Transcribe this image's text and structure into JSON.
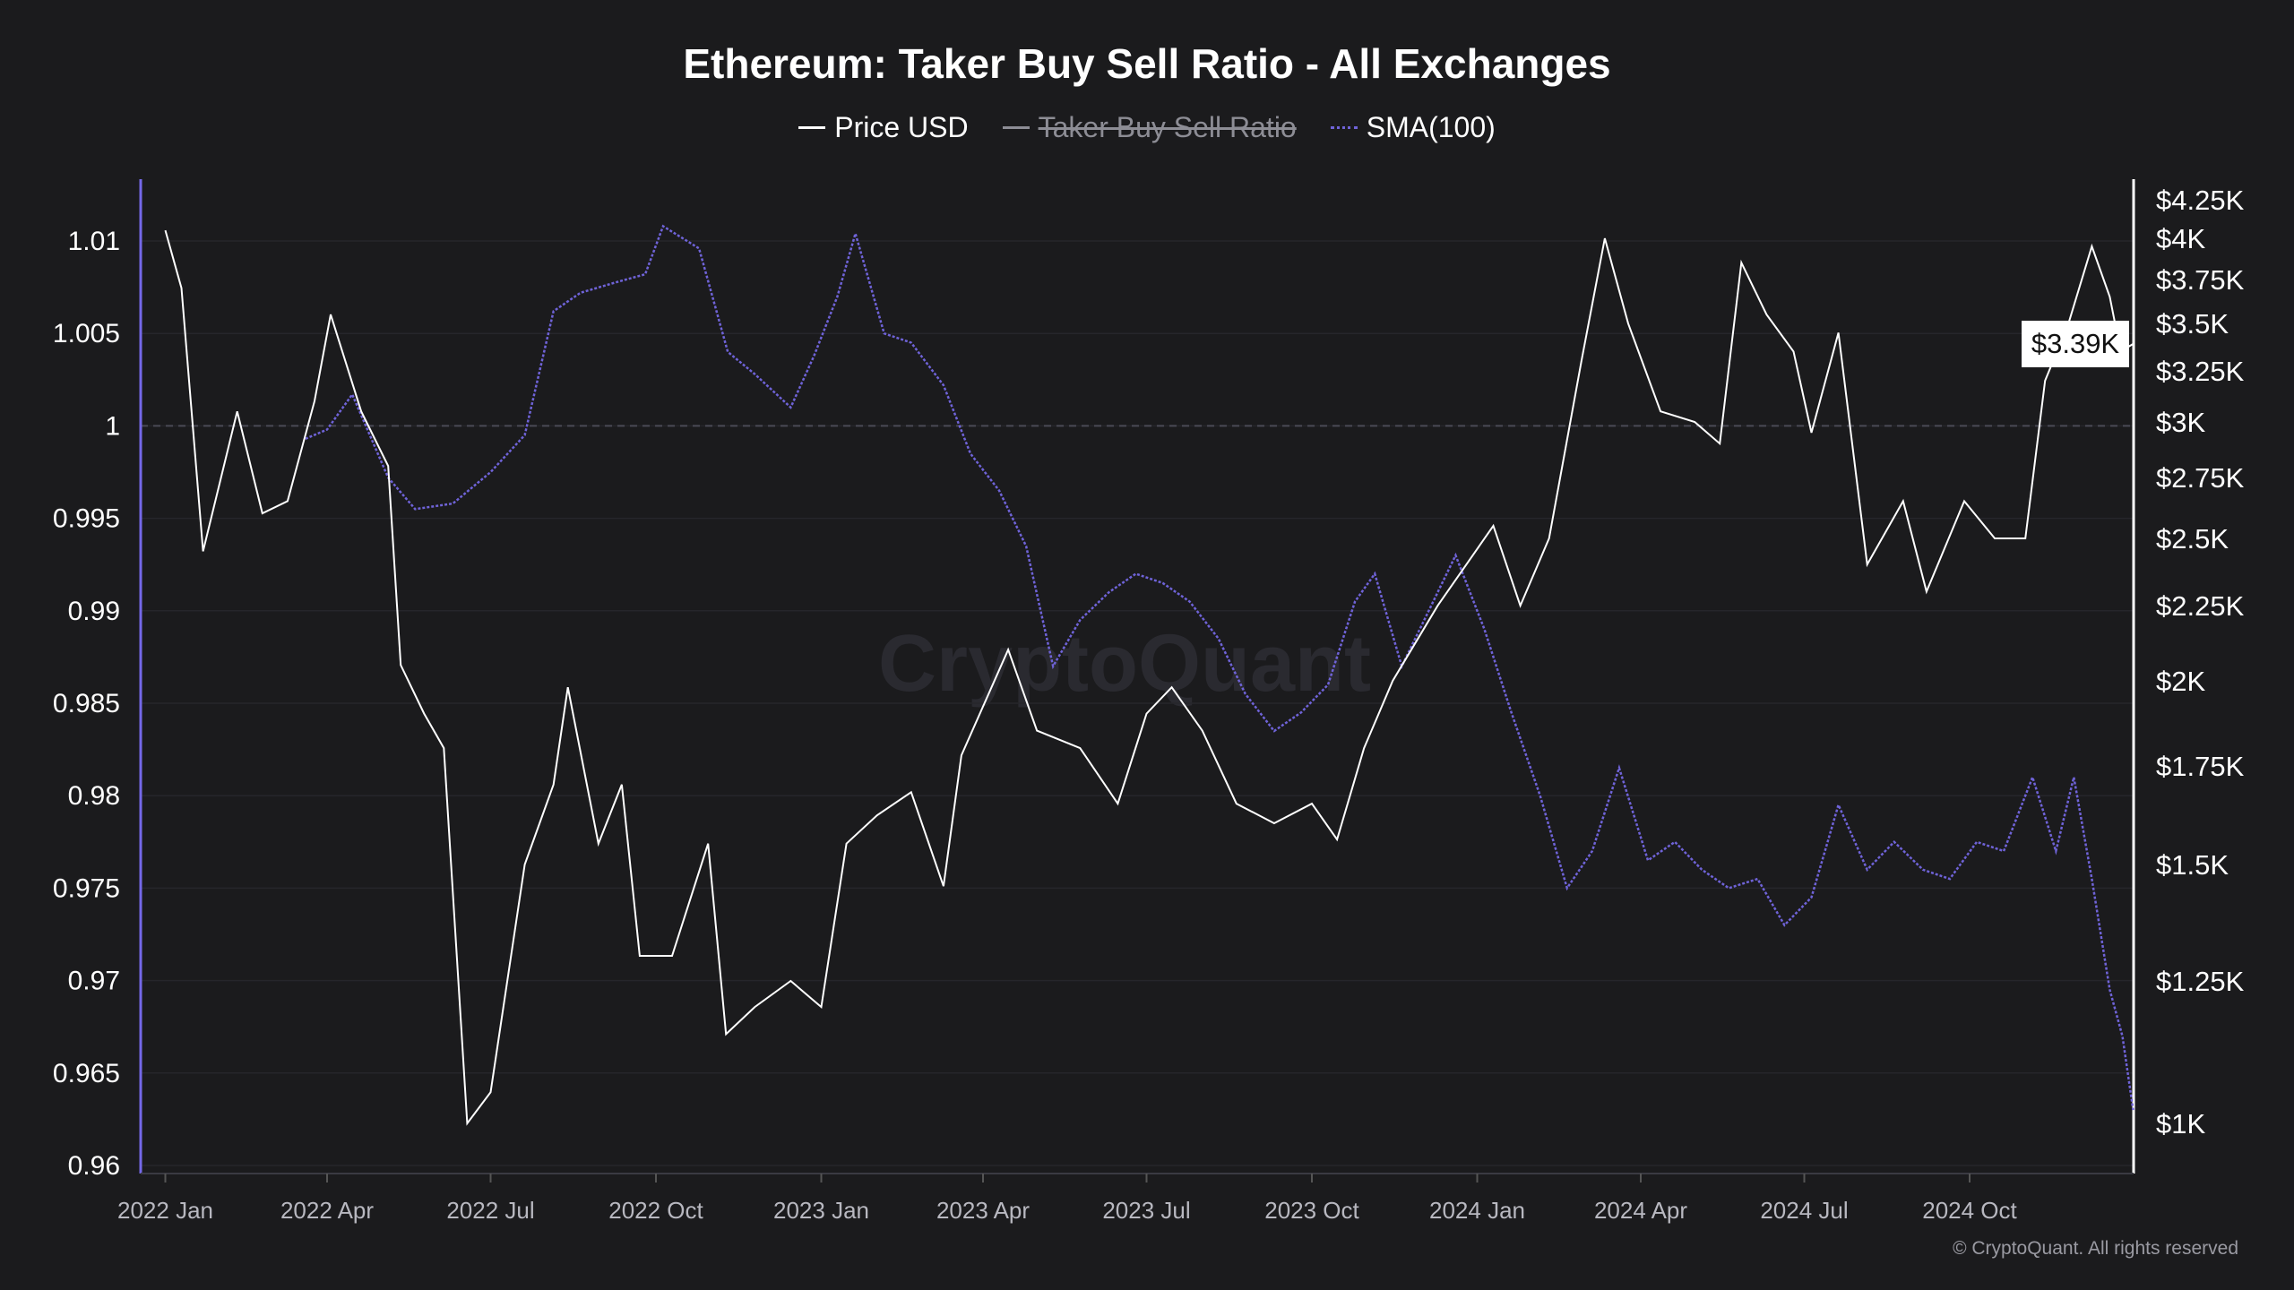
{
  "chart_data": {
    "type": "line",
    "title": "Ethereum: Taker Buy Sell Ratio - All Exchanges",
    "legend": [
      {
        "name": "Price USD",
        "color": "#ffffff",
        "visible": true
      },
      {
        "name": "Taker Buy Sell Ratio",
        "color": "#8d8d95",
        "visible": false
      },
      {
        "name": "SMA(100)",
        "color": "#6f63d8",
        "visible": true,
        "style": "dotted"
      }
    ],
    "legend_placement": "top-center",
    "x_ticks": [
      "2022 Jan",
      "2022 Apr",
      "2022 Jul",
      "2022 Oct",
      "2023 Jan",
      "2023 Apr",
      "2023 Jul",
      "2023 Oct",
      "2024 Jan",
      "2024 Apr",
      "2024 Jul",
      "2024 Oct"
    ],
    "y_left": {
      "ticks": [
        "1.01",
        "1.005",
        "1",
        "0.995",
        "0.99",
        "0.985",
        "0.98",
        "0.975",
        "0.97",
        "0.965",
        "0.96"
      ],
      "range": [
        0.96,
        1.01
      ],
      "reference_line": 1
    },
    "y_right": {
      "scale": "log",
      "ticks": [
        "$4.25K",
        "$4K",
        "$3.75K",
        "$3.5K",
        "$3.25K",
        "$3K",
        "$2.75K",
        "$2.5K",
        "$2.25K",
        "$2K",
        "$1.75K",
        "$1.5K",
        "$1.25K",
        "$1K"
      ],
      "tick_values": [
        4250,
        4000,
        3750,
        3500,
        3250,
        3000,
        2750,
        2500,
        2250,
        2000,
        1750,
        1500,
        1250,
        1000
      ]
    },
    "current_price_label": "$3.39K",
    "series": [
      {
        "name": "Price USD",
        "axis": "right",
        "points": [
          [
            "2022-01-01",
            4050
          ],
          [
            "2022-01-10",
            3700
          ],
          [
            "2022-01-22",
            2450
          ],
          [
            "2022-02-10",
            3050
          ],
          [
            "2022-02-24",
            2600
          ],
          [
            "2022-03-10",
            2650
          ],
          [
            "2022-03-25",
            3100
          ],
          [
            "2022-04-03",
            3550
          ],
          [
            "2022-04-20",
            3050
          ],
          [
            "2022-05-05",
            2800
          ],
          [
            "2022-05-12",
            2050
          ],
          [
            "2022-05-25",
            1900
          ],
          [
            "2022-06-05",
            1800
          ],
          [
            "2022-06-18",
            1000
          ],
          [
            "2022-07-01",
            1050
          ],
          [
            "2022-07-20",
            1500
          ],
          [
            "2022-08-05",
            1700
          ],
          [
            "2022-08-13",
            1980
          ],
          [
            "2022-08-30",
            1550
          ],
          [
            "2022-09-12",
            1700
          ],
          [
            "2022-09-22",
            1300
          ],
          [
            "2022-10-10",
            1300
          ],
          [
            "2022-10-30",
            1550
          ],
          [
            "2022-11-09",
            1150
          ],
          [
            "2022-11-25",
            1200
          ],
          [
            "2022-12-15",
            1250
          ],
          [
            "2023-01-01",
            1200
          ],
          [
            "2023-01-15",
            1550
          ],
          [
            "2023-02-01",
            1620
          ],
          [
            "2023-02-20",
            1680
          ],
          [
            "2023-03-10",
            1450
          ],
          [
            "2023-03-20",
            1780
          ],
          [
            "2023-04-15",
            2100
          ],
          [
            "2023-05-01",
            1850
          ],
          [
            "2023-05-25",
            1800
          ],
          [
            "2023-06-15",
            1650
          ],
          [
            "2023-07-01",
            1900
          ],
          [
            "2023-07-15",
            1980
          ],
          [
            "2023-08-01",
            1850
          ],
          [
            "2023-08-20",
            1650
          ],
          [
            "2023-09-10",
            1600
          ],
          [
            "2023-10-01",
            1650
          ],
          [
            "2023-10-15",
            1560
          ],
          [
            "2023-10-30",
            1800
          ],
          [
            "2023-11-15",
            2000
          ],
          [
            "2023-12-10",
            2250
          ],
          [
            "2024-01-10",
            2550
          ],
          [
            "2024-01-25",
            2250
          ],
          [
            "2024-02-10",
            2500
          ],
          [
            "2024-02-28",
            3300
          ],
          [
            "2024-03-12",
            4000
          ],
          [
            "2024-03-25",
            3500
          ],
          [
            "2024-04-12",
            3050
          ],
          [
            "2024-05-01",
            3000
          ],
          [
            "2024-05-15",
            2900
          ],
          [
            "2024-05-27",
            3850
          ],
          [
            "2024-06-10",
            3550
          ],
          [
            "2024-06-25",
            3350
          ],
          [
            "2024-07-05",
            2950
          ],
          [
            "2024-07-20",
            3450
          ],
          [
            "2024-08-05",
            2400
          ],
          [
            "2024-08-25",
            2650
          ],
          [
            "2024-09-07",
            2300
          ],
          [
            "2024-09-28",
            2650
          ],
          [
            "2024-10-15",
            2500
          ],
          [
            "2024-11-01",
            2500
          ],
          [
            "2024-11-12",
            3200
          ],
          [
            "2024-11-25",
            3500
          ],
          [
            "2024-12-08",
            3950
          ],
          [
            "2024-12-18",
            3650
          ],
          [
            "2024-12-24",
            3350
          ],
          [
            "2024-12-31",
            3390
          ]
        ]
      },
      {
        "name": "SMA(100)",
        "axis": "left",
        "points": [
          [
            "2022-03-20",
            0.9993
          ],
          [
            "2022-04-01",
            0.9998
          ],
          [
            "2022-04-15",
            1.0017
          ],
          [
            "2022-05-05",
            0.9972
          ],
          [
            "2022-05-20",
            0.9955
          ],
          [
            "2022-06-10",
            0.9958
          ],
          [
            "2022-07-01",
            0.9975
          ],
          [
            "2022-07-20",
            0.9995
          ],
          [
            "2022-08-05",
            1.0062
          ],
          [
            "2022-08-20",
            1.0072
          ],
          [
            "2022-09-10",
            1.0078
          ],
          [
            "2022-09-25",
            1.0082
          ],
          [
            "2022-10-05",
            1.0108
          ],
          [
            "2022-10-25",
            1.0096
          ],
          [
            "2022-11-10",
            1.004
          ],
          [
            "2022-11-25",
            1.0028
          ],
          [
            "2022-12-15",
            1.001
          ],
          [
            "2022-12-28",
            1.0038
          ],
          [
            "2023-01-10",
            1.007
          ],
          [
            "2023-01-20",
            1.0104
          ],
          [
            "2023-02-05",
            1.005
          ],
          [
            "2023-02-20",
            1.0045
          ],
          [
            "2023-03-10",
            1.0022
          ],
          [
            "2023-03-25",
            0.9985
          ],
          [
            "2023-04-10",
            0.9965
          ],
          [
            "2023-04-25",
            0.9935
          ],
          [
            "2023-05-10",
            0.987
          ],
          [
            "2023-05-25",
            0.9895
          ],
          [
            "2023-06-10",
            0.991
          ],
          [
            "2023-06-25",
            0.992
          ],
          [
            "2023-07-10",
            0.9915
          ],
          [
            "2023-07-25",
            0.9905
          ],
          [
            "2023-08-10",
            0.9885
          ],
          [
            "2023-08-25",
            0.9855
          ],
          [
            "2023-09-10",
            0.9835
          ],
          [
            "2023-09-25",
            0.9845
          ],
          [
            "2023-10-10",
            0.986
          ],
          [
            "2023-10-25",
            0.9905
          ],
          [
            "2023-11-05",
            0.992
          ],
          [
            "2023-11-20",
            0.987
          ],
          [
            "2023-12-05",
            0.99
          ],
          [
            "2023-12-20",
            0.993
          ],
          [
            "2024-01-05",
            0.989
          ],
          [
            "2024-01-20",
            0.9845
          ],
          [
            "2024-02-05",
            0.98
          ],
          [
            "2024-02-20",
            0.975
          ],
          [
            "2024-03-05",
            0.977
          ],
          [
            "2024-03-20",
            0.9815
          ],
          [
            "2024-04-05",
            0.9765
          ],
          [
            "2024-04-20",
            0.9775
          ],
          [
            "2024-05-05",
            0.976
          ],
          [
            "2024-05-20",
            0.975
          ],
          [
            "2024-06-05",
            0.9755
          ],
          [
            "2024-06-20",
            0.973
          ],
          [
            "2024-07-05",
            0.9745
          ],
          [
            "2024-07-20",
            0.9795
          ],
          [
            "2024-08-05",
            0.976
          ],
          [
            "2024-08-20",
            0.9775
          ],
          [
            "2024-09-05",
            0.976
          ],
          [
            "2024-09-20",
            0.9755
          ],
          [
            "2024-10-05",
            0.9775
          ],
          [
            "2024-10-20",
            0.977
          ],
          [
            "2024-11-05",
            0.981
          ],
          [
            "2024-11-18",
            0.977
          ],
          [
            "2024-11-28",
            0.981
          ],
          [
            "2024-12-08",
            0.9755
          ],
          [
            "2024-12-18",
            0.9695
          ],
          [
            "2024-12-25",
            0.967
          ],
          [
            "2024-12-31",
            0.963
          ]
        ]
      }
    ]
  },
  "watermark": "CryptoQuant",
  "copyright": "© CryptoQuant. All rights reserved"
}
